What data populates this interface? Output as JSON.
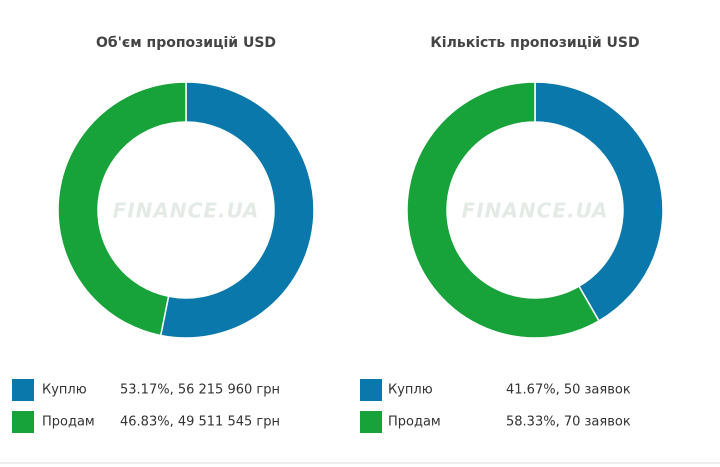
{
  "chart_data": [
    {
      "type": "pie",
      "title": "Об'єм пропозицій USD",
      "watermark": "FINANCE.UA",
      "categories": [
        "Куплю",
        "Продам"
      ],
      "values": [
        53.17,
        46.83
      ],
      "value_labels": [
        "53.17%, 56 215 960 грн",
        "46.83%, 49 511 545 грн"
      ],
      "colors": [
        "#0a78aa",
        "#17a23a"
      ]
    },
    {
      "type": "pie",
      "title": "Кількість пропозицій USD",
      "watermark": "FINANCE.UA",
      "categories": [
        "Куплю",
        "Продам"
      ],
      "values": [
        41.67,
        58.33
      ],
      "value_labels": [
        "41.67%, 50 заявок",
        "58.33%, 70 заявок"
      ],
      "colors": [
        "#0a78aa",
        "#17a23a"
      ]
    }
  ]
}
